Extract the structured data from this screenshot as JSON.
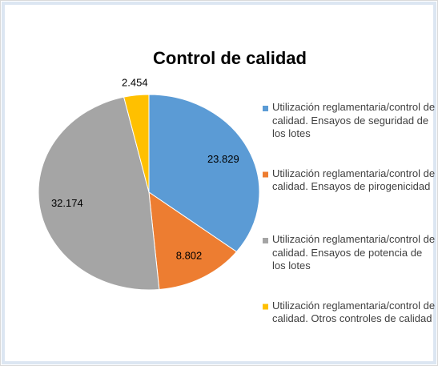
{
  "chart_data": {
    "type": "pie",
    "title": "Control de calidad",
    "categories": [
      "Utilización reglamentaria/control de calidad. Ensayos de seguridad de los lotes",
      "Utilización reglamentaria/control de calidad. Ensayos de pirogenicidad",
      "Utilización reglamentaria/control de calidad. Ensayos de potencia de los lotes",
      "Utilización reglamentaria/control de calidad. Otros controles de calidad"
    ],
    "values": [
      23829,
      8802,
      32174,
      2454
    ],
    "value_labels": [
      "23.829",
      "8.802",
      "32.174",
      "2.454"
    ],
    "colors": [
      "#5b9bd5",
      "#ed7d31",
      "#a5a5a5",
      "#ffc000"
    ],
    "legend": "right"
  }
}
